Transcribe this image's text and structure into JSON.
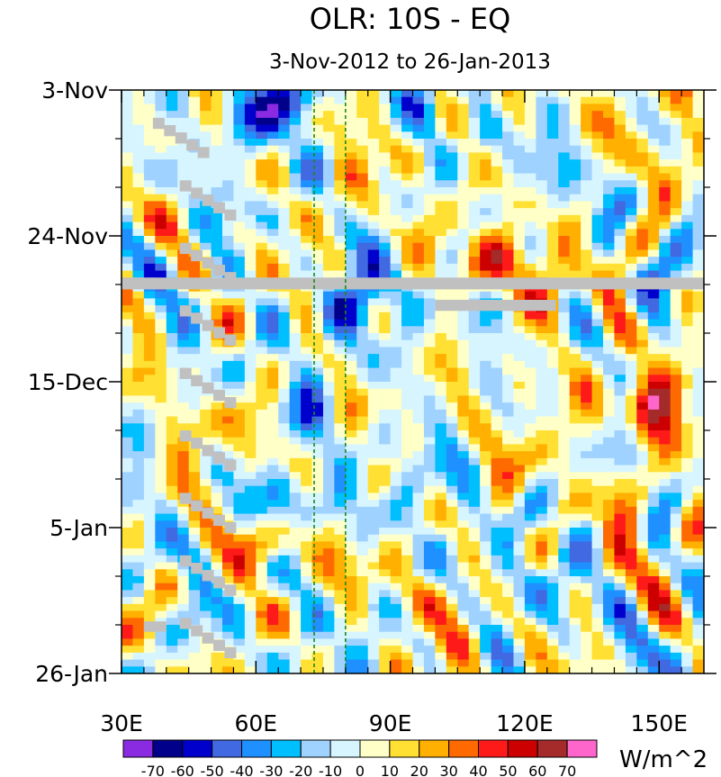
{
  "chart_data": {
    "type": "heatmap",
    "title": "OLR: 10S - EQ",
    "subtitle": "3-Nov-2012 to 26-Jan-2013",
    "x_axis": {
      "range": [
        30,
        160
      ],
      "ticks": [
        30,
        60,
        90,
        120,
        150
      ],
      "tick_labels": [
        "30E",
        "60E",
        "90E",
        "120E",
        "150E"
      ]
    },
    "y_axis": {
      "range_days": [
        0,
        84
      ],
      "ticks_days": [
        0,
        21,
        42,
        63,
        84
      ],
      "tick_labels": [
        "3-Nov",
        "24-Nov",
        "15-Dec",
        "5-Jan",
        "26-Jan"
      ]
    },
    "reference_lines_lon": [
      73,
      80
    ],
    "colorbar": {
      "label": "W/m^2",
      "levels": [
        "-70",
        "-60",
        "-50",
        "-40",
        "-30",
        "-20",
        "-10",
        "0",
        "10",
        "20",
        "30",
        "40",
        "50",
        "60",
        "70"
      ],
      "colors": [
        "#8a2be2",
        "#00008b",
        "#0000cd",
        "#4169e1",
        "#1e90ff",
        "#00bfff",
        "#a0d2ff",
        "#d6f5ff",
        "#ffffc8",
        "#ffe033",
        "#ffb000",
        "#ff6a00",
        "#ff1a1a",
        "#cc0000",
        "#a52a2a",
        "#ff66cc"
      ]
    },
    "anomaly_features": [
      {
        "lon": 85,
        "day": 31,
        "value": -40
      },
      {
        "lon": 68,
        "day": 60,
        "value": -50
      },
      {
        "lon": 120,
        "day": 25,
        "value": 40
      },
      {
        "lon": 148,
        "day": 45,
        "value": 50
      },
      {
        "lon": 60,
        "day": 65,
        "value": 40
      },
      {
        "lon": 66,
        "day": 2,
        "value": -60
      }
    ]
  }
}
